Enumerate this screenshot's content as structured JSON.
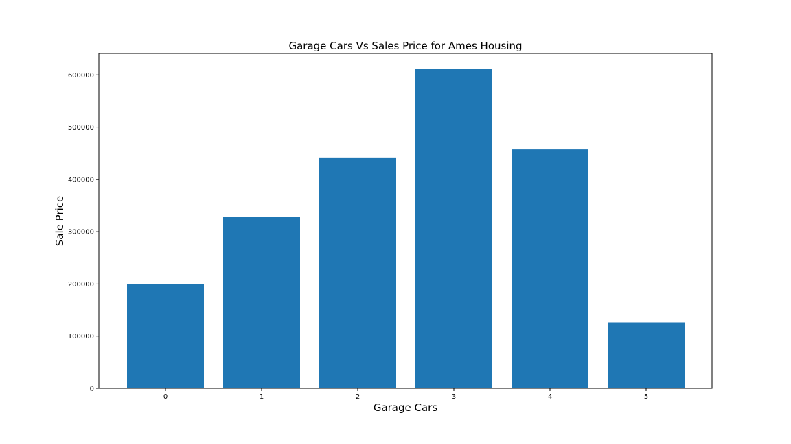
{
  "chart_data": {
    "type": "bar",
    "title": "Garage Cars Vs Sales Price for Ames Housing",
    "xlabel": "Garage Cars",
    "ylabel": "Sale Price",
    "categories": [
      "0",
      "1",
      "2",
      "3",
      "4",
      "5"
    ],
    "values": [
      200500,
      328900,
      441929,
      611657,
      457347,
      126500
    ],
    "ylim": [
      0,
      641000
    ],
    "yticks": [
      0,
      100000,
      200000,
      300000,
      400000,
      500000,
      600000
    ],
    "ytick_labels": [
      "0",
      "100000",
      "200000",
      "300000",
      "400000",
      "500000",
      "600000"
    ],
    "bar_color": "#1f77b4",
    "grid": false,
    "legend": "none"
  }
}
